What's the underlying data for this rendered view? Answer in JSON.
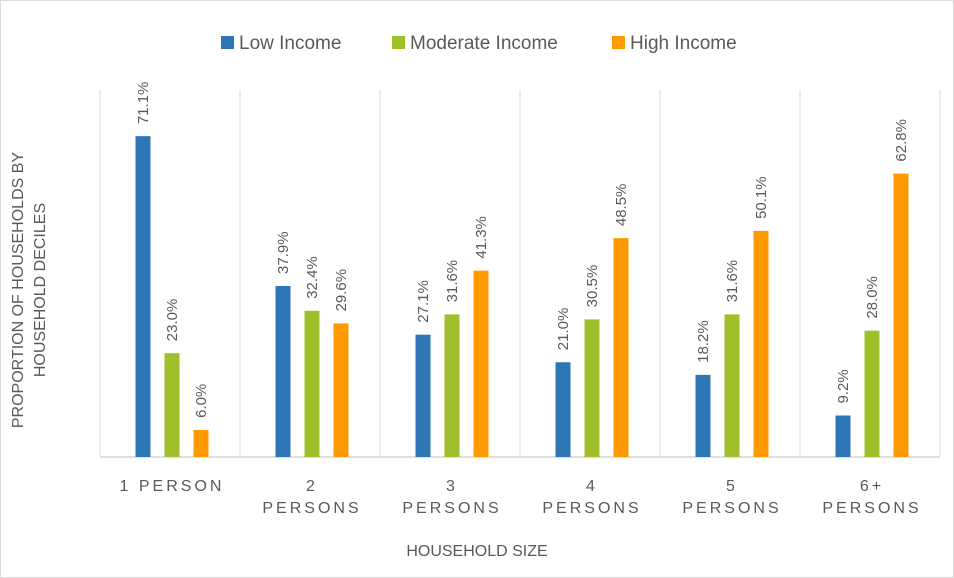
{
  "chart_data": {
    "type": "bar",
    "x_label": "HOUSEHOLD SIZE",
    "y_label": "PROPORTION OF HOUSEHOLDS BY\nHOUSEHOLD DECILES",
    "categories": [
      "1 PERSON",
      "2\nPERSONS",
      "3\nPERSONS",
      "4\nPERSONS",
      "5\nPERSONS",
      "6+\nPERSONS"
    ],
    "series": [
      {
        "name": "Low Income",
        "color": "#2e75b6",
        "values": [
          71.1,
          37.9,
          27.1,
          21.0,
          18.2,
          9.2
        ],
        "value_labels": [
          "71.1%",
          "37.9%",
          "27.1%",
          "21.0%",
          "18.2%",
          "9.2%"
        ]
      },
      {
        "name": "Moderate Income",
        "color": "#9fc02b",
        "values": [
          23.0,
          32.4,
          31.6,
          30.5,
          31.6,
          28.0
        ],
        "value_labels": [
          "23.0%",
          "32.4%",
          "31.6%",
          "30.5%",
          "31.6%",
          "28.0%"
        ]
      },
      {
        "name": "High Income",
        "color": "#ff9900",
        "values": [
          6.0,
          29.6,
          41.3,
          48.5,
          50.1,
          62.8
        ],
        "value_labels": [
          "6.0%",
          "29.6%",
          "41.3%",
          "48.5%",
          "50.1%",
          "62.8%"
        ]
      }
    ],
    "ylim": [
      0,
      80
    ],
    "legend": "top"
  }
}
